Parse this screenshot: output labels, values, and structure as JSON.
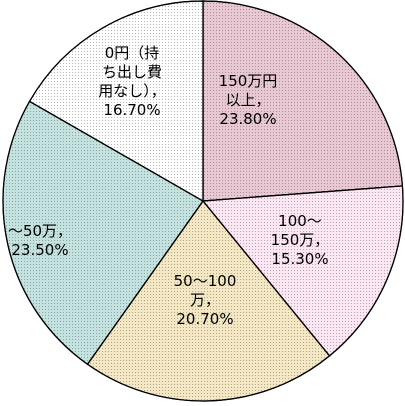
{
  "chart_data": {
    "type": "pie",
    "slices": [
      {
        "name": "150万円以上",
        "value": 23.8,
        "label_lines": [
          "150万円",
          "以上，",
          "23.80%"
        ],
        "color": "#e8c8d2"
      },
      {
        "name": "100～150万",
        "value": 15.3,
        "label_lines": [
          "100～",
          "150万，",
          "15.30%"
        ],
        "color": "#fbe6f4"
      },
      {
        "name": "50～100万",
        "value": 20.7,
        "label_lines": [
          "50～100",
          "万，",
          "20.70%"
        ],
        "color": "#f4e8c4"
      },
      {
        "name": "～50万",
        "value": 23.5,
        "label_lines": [
          "～50万，",
          "23.50%"
        ],
        "color": "#c4e2e0"
      },
      {
        "name": "0円（持ち出し費用なし）",
        "value": 16.7,
        "label_lines": [
          "0円（持",
          "ち出し費",
          "用なし），",
          "16.70%"
        ],
        "color": "#ffffff"
      }
    ],
    "start_angle": "12 o'clock",
    "direction": "clockwise",
    "legend": "none"
  }
}
